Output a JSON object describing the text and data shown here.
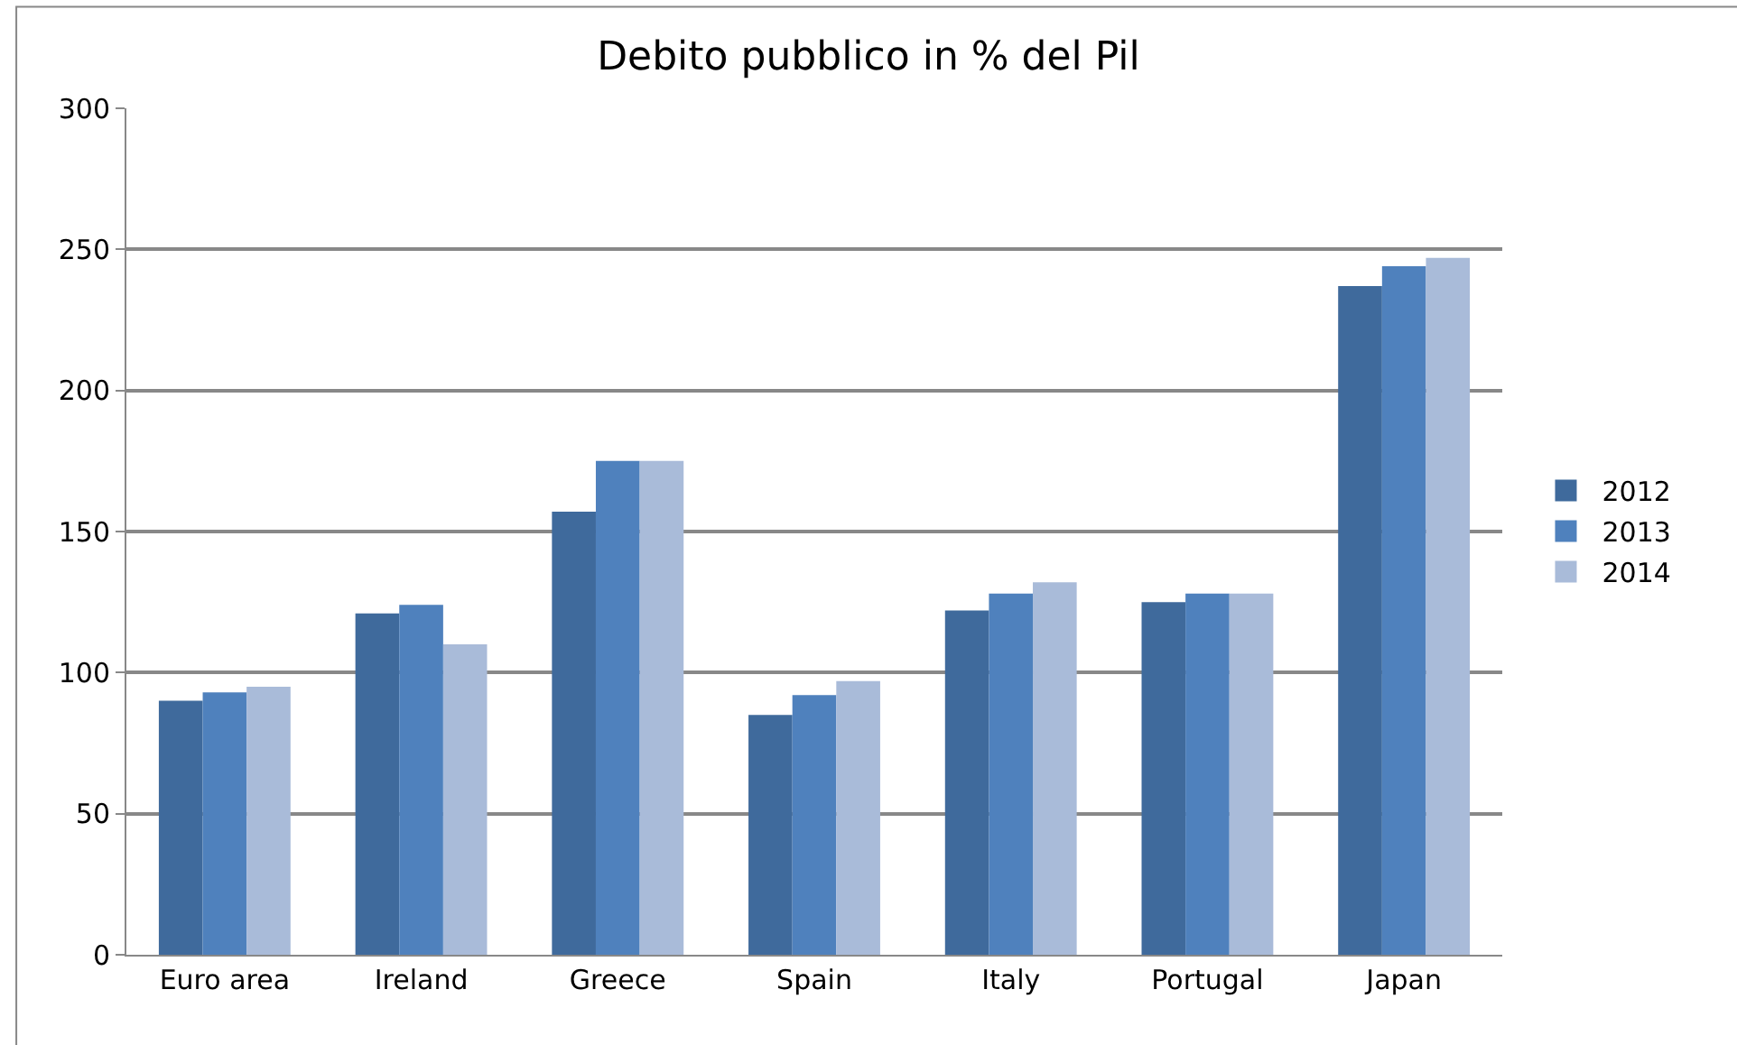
{
  "chart_data": {
    "type": "bar",
    "title": "Debito pubblico in % del Pil",
    "categories": [
      "Euro area",
      "Ireland",
      "Greece",
      "Spain",
      "Italy",
      "Portugal",
      "Japan"
    ],
    "series": [
      {
        "name": "2012",
        "color": "#3f6a9c",
        "values": [
          90,
          121,
          157,
          85,
          122,
          125,
          237
        ]
      },
      {
        "name": "2013",
        "color": "#4f81bd",
        "values": [
          93,
          124,
          175,
          92,
          128,
          128,
          244
        ]
      },
      {
        "name": "2014",
        "color": "#a9bbd9",
        "values": [
          95,
          110,
          175,
          97,
          132,
          128,
          247
        ]
      }
    ],
    "ylim": [
      0,
      300
    ],
    "yticks": [
      0,
      50,
      100,
      150,
      200,
      250,
      300
    ],
    "grid": "y",
    "legend": "right"
  }
}
